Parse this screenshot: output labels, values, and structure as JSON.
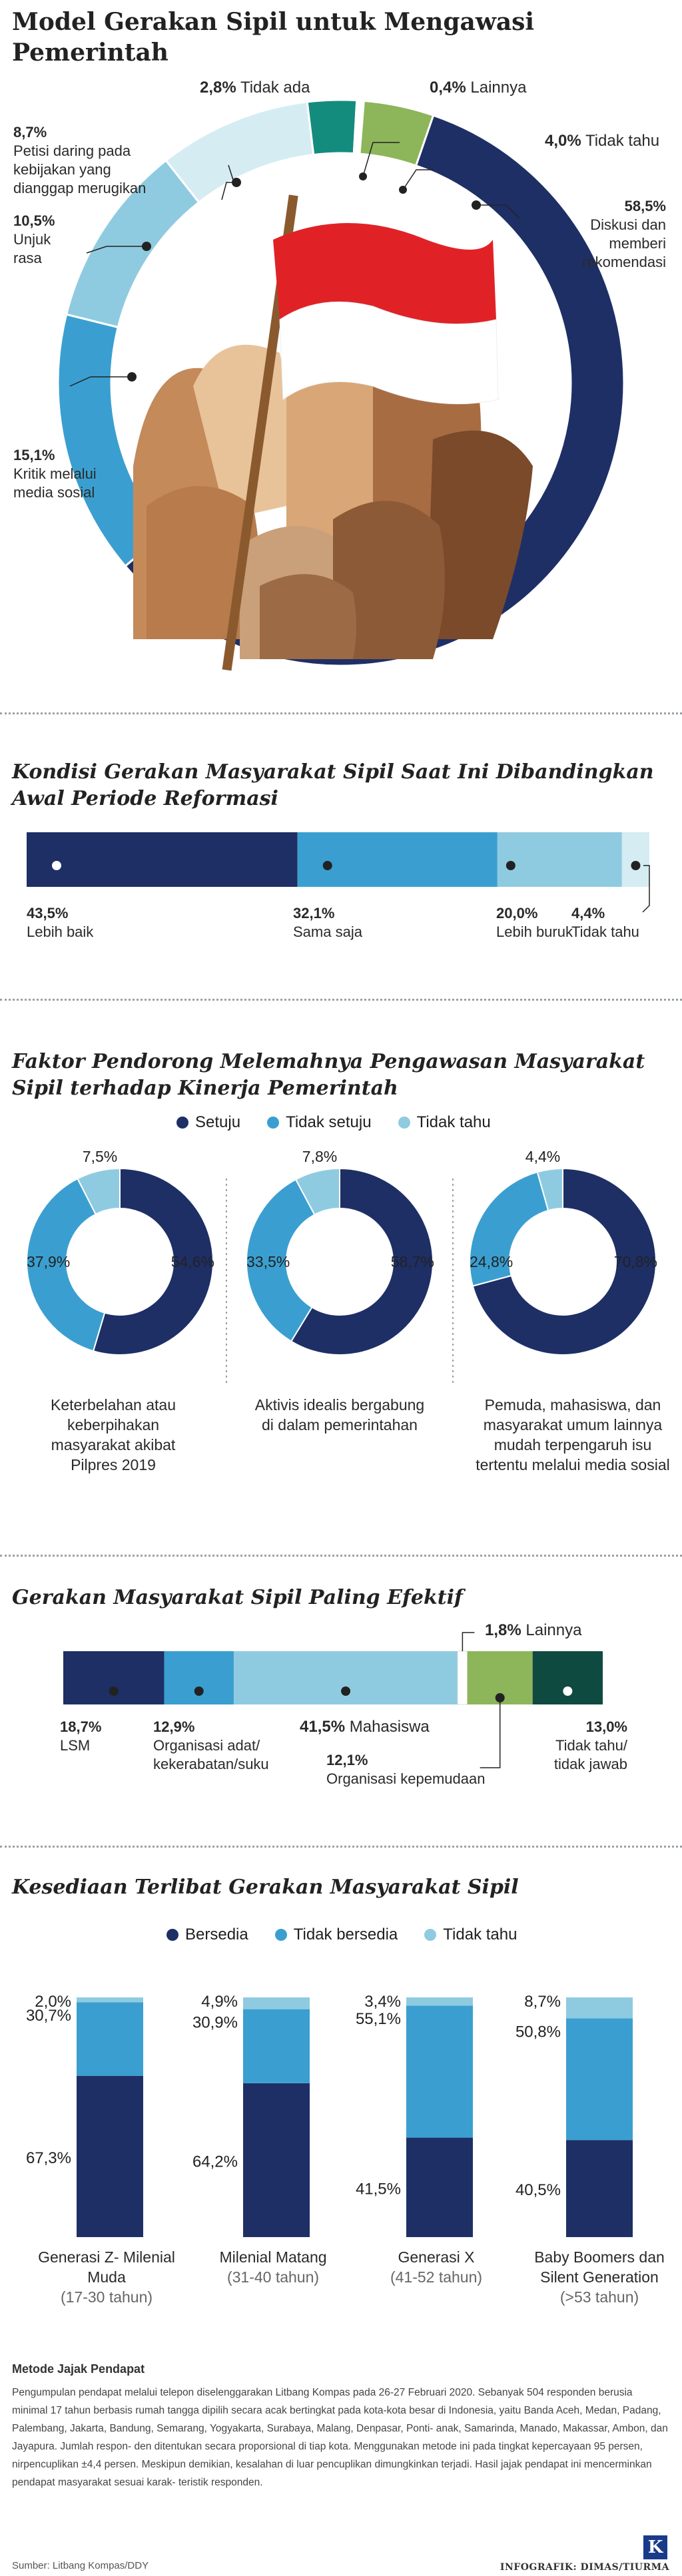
{
  "title": "Model Gerakan Sipil untuk Mengawasi Pemerintah",
  "colors": {
    "navy": "#1e2f66",
    "blue": "#3a9fd0",
    "light": "#8fcbe0",
    "pale": "#d5ecf3",
    "teal": "#138c7e",
    "green": "#8db55a",
    "darkteal": "#0f4a40"
  },
  "chart_data": [
    {
      "type": "pie",
      "title": "Model Gerakan Sipil untuk Mengawasi Pemerintah",
      "slices": [
        {
          "label": "Diskusi dan memberi rekomendasi",
          "value": 58.5,
          "display": "58,5%"
        },
        {
          "label": "Kritik melalui media sosial",
          "value": 15.1,
          "display": "15,1%"
        },
        {
          "label": "Unjuk rasa",
          "value": 10.5,
          "display": "10,5%"
        },
        {
          "label": "Petisi daring pada kebijakan yang dianggap merugikan",
          "value": 8.7,
          "display": "8,7%"
        },
        {
          "label": "Tidak ada",
          "value": 2.8,
          "display": "2,8%"
        },
        {
          "label": "Lainnya",
          "value": 0.4,
          "display": "0,4%"
        },
        {
          "label": "Tidak tahu",
          "value": 4.0,
          "display": "4,0%"
        }
      ]
    },
    {
      "type": "bar",
      "title": "Kondisi Gerakan Masyarakat Sipil Saat Ini Dibandingkan Awal Periode Reformasi",
      "categories": [
        "Lebih baik",
        "Sama saja",
        "Lebih buruk",
        "Tidak tahu"
      ],
      "values": [
        43.5,
        32.1,
        20.0,
        4.4
      ],
      "display": [
        "43,5%",
        "32,1%",
        "20,0%",
        "4,4%"
      ]
    },
    {
      "type": "pie",
      "title": "Faktor Pendorong Melemahnya Pengawasan Masyarakat Sipil terhadap Kinerja Pemerintah",
      "legend": [
        "Setuju",
        "Tidak setuju",
        "Tidak tahu"
      ],
      "charts": [
        {
          "caption": "Keterbelahan atau keberpihakan masyarakat akibat Pilpres 2019",
          "values": [
            54.6,
            37.9,
            7.5
          ],
          "display": [
            "54,6%",
            "37,9%",
            "7,5%"
          ]
        },
        {
          "caption": "Aktivis idealis bergabung di dalam pemerintahan",
          "values": [
            58.7,
            33.5,
            7.8
          ],
          "display": [
            "58,7%",
            "33,5%",
            "7,8%"
          ]
        },
        {
          "caption": "Pemuda, mahasiswa, dan masyarakat umum lainnya mudah terpengaruh isu tertentu melalui media sosial",
          "values": [
            70.8,
            24.8,
            4.4
          ],
          "display": [
            "70,8%",
            "24,8%",
            "4,4%"
          ]
        }
      ]
    },
    {
      "type": "bar",
      "title": "Gerakan Masyarakat Sipil Paling Efektif",
      "categories": [
        "LSM",
        "Organisasi adat/ kekerabatan/suku",
        "Mahasiswa",
        "Lainnya",
        "Organisasi kepemudaan",
        "Tidak tahu/ tidak jawab"
      ],
      "values": [
        18.7,
        12.9,
        41.5,
        1.8,
        12.1,
        13.0
      ],
      "display": [
        "18,7%",
        "12,9%",
        "41,5%",
        "1,8%",
        "12,1%",
        "13,0%"
      ]
    },
    {
      "type": "bar",
      "title": "Kesediaan Terlibat Gerakan Masyarakat Sipil",
      "legend": [
        "Bersedia",
        "Tidak bersedia",
        "Tidak tahu"
      ],
      "groups": [
        {
          "name": "Generasi Z- Milenial Muda",
          "range": "(17-30 tahun)",
          "values": [
            67.3,
            30.7,
            2.0
          ],
          "display": [
            "67,3%",
            "30,7%",
            "2,0%"
          ]
        },
        {
          "name": "Milenial Matang",
          "range": "(31-40 tahun)",
          "values": [
            64.2,
            30.9,
            4.9
          ],
          "display": [
            "64,2%",
            "30,9%",
            "4,9%"
          ]
        },
        {
          "name": "Generasi X",
          "range": "(41-52 tahun)",
          "values": [
            41.5,
            55.1,
            3.4
          ],
          "display": [
            "41,5%",
            "55,1%",
            "3,4%"
          ]
        },
        {
          "name": "Baby Boomers dan Silent Generation",
          "range": "(>53 tahun)",
          "values": [
            40.5,
            50.8,
            8.7
          ],
          "display": [
            "40,5%",
            "50,8%",
            "8,7%"
          ]
        }
      ]
    }
  ],
  "s1": {
    "l_diskusi": "Diskusi dan memberi rekomendasi",
    "l_kritik": "Kritik melalui media sosial",
    "l_unjuk": "Unjuk rasa",
    "l_petisi": "Petisi daring pada kebijakan yang dianggap merugikan",
    "l_tidakada": "Tidak ada",
    "l_lainnya": "Lainnya",
    "l_tidaktahu": "Tidak tahu"
  },
  "s2": {
    "title": "Kondisi Gerakan Masyarakat Sipil Saat Ini Dibandingkan Awal Periode Reformasi"
  },
  "s3": {
    "title": "Faktor Pendorong Melemahnya Pengawasan Masyarakat Sipil terhadap Kinerja Pemerintah",
    "leg1": "Setuju",
    "leg2": "Tidak setuju",
    "leg3": "Tidak tahu",
    "cap1": "Keterbelahan atau keberpihakan masyarakat akibat Pilpres 2019",
    "cap2": "Aktivis idealis bergabung di dalam pemerintahan",
    "cap3": "Pemuda, mahasiswa, dan masyarakat umum lainnya mudah terpengaruh isu tertentu melalui media sosial"
  },
  "s4": {
    "title": "Gerakan Masyarakat Sipil Paling Efektif",
    "l1": "LSM",
    "l2": "Organisasi adat/ kekerabatan/suku",
    "l3": "Mahasiswa",
    "l4": "Lainnya",
    "l5": "Organisasi kepemudaan",
    "l6": "Tidak tahu/ tidak jawab"
  },
  "s5": {
    "title": "Kesediaan Terlibat Gerakan Masyarakat Sipil",
    "leg1": "Bersedia",
    "leg2": "Tidak bersedia",
    "leg3": "Tidak tahu",
    "g1": "Generasi Z- Milenial Muda",
    "g1r": "(17-30 tahun)",
    "g2": "Milenial Matang",
    "g2r": "(31-40 tahun)",
    "g3": "Generasi X",
    "g3r": "(41-52 tahun)",
    "g4": "Baby Boomers dan Silent Generation",
    "g4r": "(>53 tahun)"
  },
  "method": {
    "heading": "Metode Jajak Pendapat",
    "body": "Pengumpulan pendapat melalui telepon diselenggarakan Litbang Kompas pada 26-27 Februari 2020. Sebanyak 504 responden berusia minimal 17 tahun berbasis rumah tangga dipilih secara acak bertingkat pada kota-kota besar di Indonesia, yaitu Banda Aceh, Medan, Padang, Palembang, Jakarta, Bandung, Semarang, Yogyakarta, Surabaya, Malang, Denpasar, Ponti- anak, Samarinda, Manado, Makassar, Ambon, dan Jayapura. Jumlah respon- den ditentukan secara proporsional di tiap kota. Menggunakan metode ini pada tingkat kepercayaan 95 persen, nirpencuplikan ±4,4 persen. Meskipun demikian, kesalahan di luar pencuplikan dimungkinkan terjadi. Hasil jajak pendapat ini mencerminkan pendapat masyarakat sesuai karak- teristik responden."
  },
  "footer": {
    "source": "Sumber: Litbang Kompas/DDY",
    "credit": "INFOGRAFIK: DIMAS/TIURMA",
    "logo": "K"
  }
}
